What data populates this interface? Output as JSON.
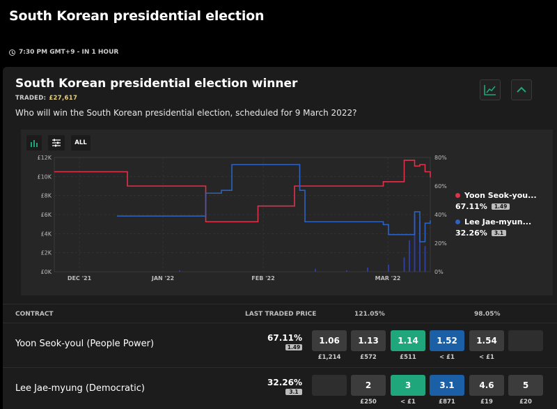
{
  "page": {
    "title": "South Korean presidential election",
    "event_time": "7:30 PM GMT+9 - IN 1 HOUR"
  },
  "market": {
    "title": "South Korean presidential election winner",
    "traded_label": "TRADED:",
    "traded_value": "£27,617",
    "question": "Who will win the South Korean presidential election, scheduled for 9 March 2022?",
    "controls": {
      "all_label": "ALL"
    }
  },
  "chart_data": {
    "type": "line",
    "x_dates": [
      "2021-11-18",
      "2021-11-25",
      "2021-12-02",
      "2021-12-09",
      "2021-12-16",
      "2021-12-23",
      "2021-12-30",
      "2022-01-06",
      "2022-01-13",
      "2022-01-20",
      "2022-01-27",
      "2022-02-03",
      "2022-02-10",
      "2022-02-17",
      "2022-02-24",
      "2022-03-01",
      "2022-03-05",
      "2022-03-08",
      "2022-03-09"
    ],
    "x_tick_labels": [
      "DEC '21",
      "JAN '22",
      "FEB '22",
      "MAR '22"
    ],
    "left_axis_ticks": [
      "£12K",
      "£10K",
      "£8K",
      "£6K",
      "£4K",
      "£2K",
      "£0K"
    ],
    "right_axis_ticks": [
      "80%",
      "60%",
      "40%",
      "20%",
      "0%"
    ],
    "ylim_pct": [
      0,
      80
    ],
    "series": [
      {
        "name": "Yoon Seok-youl",
        "color": "#e0324a",
        "points": [
          [
            0,
            70
          ],
          [
            6,
            70
          ],
          [
            7,
            60
          ],
          [
            14,
            60
          ],
          [
            14.5,
            35
          ],
          [
            19,
            35
          ],
          [
            19.5,
            46
          ],
          [
            22.5,
            46
          ],
          [
            23,
            60
          ],
          [
            31,
            60
          ],
          [
            31.5,
            63
          ],
          [
            33,
            63
          ],
          [
            33.5,
            78
          ],
          [
            34.5,
            74
          ],
          [
            35,
            75
          ],
          [
            35.5,
            70
          ],
          [
            36,
            66
          ]
        ]
      },
      {
        "name": "Lee Jae-myung",
        "color": "#2b62c4",
        "points": [
          [
            6,
            39
          ],
          [
            14,
            39
          ],
          [
            14.5,
            55
          ],
          [
            16,
            57
          ],
          [
            17,
            75
          ],
          [
            23,
            75
          ],
          [
            23.5,
            57
          ],
          [
            24,
            35
          ],
          [
            30,
            35
          ],
          [
            31.5,
            33
          ],
          [
            32,
            26
          ],
          [
            34,
            26
          ],
          [
            34.5,
            42
          ],
          [
            35,
            21
          ],
          [
            35.5,
            34
          ],
          [
            36,
            36
          ]
        ]
      }
    ],
    "volume_bars": [
      [
        12,
        1
      ],
      [
        25,
        2
      ],
      [
        28,
        1
      ],
      [
        30,
        3
      ],
      [
        32,
        5
      ],
      [
        33.5,
        10
      ],
      [
        34,
        22
      ],
      [
        34.5,
        40
      ],
      [
        35,
        35
      ],
      [
        35.5,
        18
      ]
    ]
  },
  "legend": [
    {
      "name": "Yoon Seok-you...",
      "pct": "67.11%",
      "badge": "1.49",
      "color": "#e0324a"
    },
    {
      "name": "Lee Jae-myun...",
      "pct": "32.26%",
      "badge": "3.1",
      "color": "#2b62c4"
    }
  ],
  "table": {
    "headers": {
      "contract": "CONTRACT",
      "last_traded": "LAST TRADED PRICE",
      "back_book": "121.05%",
      "lay_book": "98.05%"
    },
    "rows": [
      {
        "name": "Yoon Seok-youl (People Power)",
        "pct": "67.11%",
        "badge": "1.49",
        "cells": [
          {
            "price": "1.06",
            "amount": "£1,214",
            "kind": "back3"
          },
          {
            "price": "1.13",
            "amount": "£572",
            "kind": "back2"
          },
          {
            "price": "1.14",
            "amount": "£511",
            "kind": "back"
          },
          {
            "price": "1.52",
            "amount": "< £1",
            "kind": "lay"
          },
          {
            "price": "1.54",
            "amount": "< £1",
            "kind": "lay2"
          },
          {
            "price": "",
            "amount": "",
            "kind": "empty"
          }
        ]
      },
      {
        "name": "Lee Jae-myung (Democratic)",
        "pct": "32.26%",
        "badge": "3.1",
        "cells": [
          {
            "price": "",
            "amount": "",
            "kind": "empty"
          },
          {
            "price": "2",
            "amount": "£250",
            "kind": "back2"
          },
          {
            "price": "3",
            "amount": "< £1",
            "kind": "back"
          },
          {
            "price": "3.1",
            "amount": "£871",
            "kind": "lay"
          },
          {
            "price": "4.6",
            "amount": "£19",
            "kind": "lay2"
          },
          {
            "price": "5",
            "amount": "£20",
            "kind": "lay3"
          }
        ]
      }
    ]
  }
}
